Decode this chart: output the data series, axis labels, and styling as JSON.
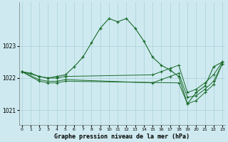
{
  "background_color": "#ceeaf0",
  "grid_color": "#aad0d8",
  "line_color": "#1a6b2a",
  "marker_color": "#1a6b2a",
  "title": "Graphe pression niveau de la mer (hPa)",
  "xlim": [
    -0.3,
    23.3
  ],
  "ylim": [
    1020.55,
    1024.35
  ],
  "yticks": [
    1021,
    1022,
    1023
  ],
  "xticks": [
    0,
    1,
    2,
    3,
    4,
    5,
    6,
    7,
    8,
    9,
    10,
    11,
    12,
    13,
    14,
    15,
    16,
    17,
    18,
    19,
    20,
    21,
    22,
    23
  ],
  "series": [
    {
      "x": [
        0,
        1,
        2,
        3,
        4,
        5,
        6,
        7,
        8,
        9,
        10,
        11,
        12,
        13,
        14,
        15,
        16,
        17,
        18,
        19,
        20,
        21,
        22,
        23
      ],
      "y": [
        1022.2,
        1022.15,
        1022.05,
        1022.0,
        1022.05,
        1022.1,
        1022.35,
        1022.65,
        1023.1,
        1023.55,
        1023.85,
        1023.75,
        1023.85,
        1023.55,
        1023.15,
        1022.65,
        1022.4,
        1022.25,
        1022.05,
        1021.2,
        1021.55,
        1021.75,
        1022.35,
        1022.5
      ]
    },
    {
      "x": [
        0,
        2,
        3,
        4,
        5,
        15,
        16,
        17,
        18,
        19,
        20,
        21,
        22,
        23
      ],
      "y": [
        1022.2,
        1022.05,
        1022.0,
        1022.0,
        1022.05,
        1022.1,
        1022.2,
        1022.3,
        1022.4,
        1021.55,
        1021.65,
        1021.85,
        1022.1,
        1022.5
      ]
    },
    {
      "x": [
        0,
        2,
        3,
        4,
        5,
        15,
        16,
        17,
        18,
        19,
        20,
        21,
        22,
        23
      ],
      "y": [
        1022.2,
        1021.95,
        1021.9,
        1021.9,
        1021.95,
        1021.85,
        1021.95,
        1022.05,
        1022.15,
        1021.4,
        1021.45,
        1021.65,
        1021.9,
        1022.45
      ]
    },
    {
      "x": [
        0,
        2,
        3,
        4,
        5,
        18,
        19,
        20,
        21,
        22,
        23
      ],
      "y": [
        1022.2,
        1021.9,
        1021.85,
        1021.85,
        1021.9,
        1021.85,
        1021.2,
        1021.3,
        1021.55,
        1021.8,
        1022.45
      ]
    }
  ]
}
